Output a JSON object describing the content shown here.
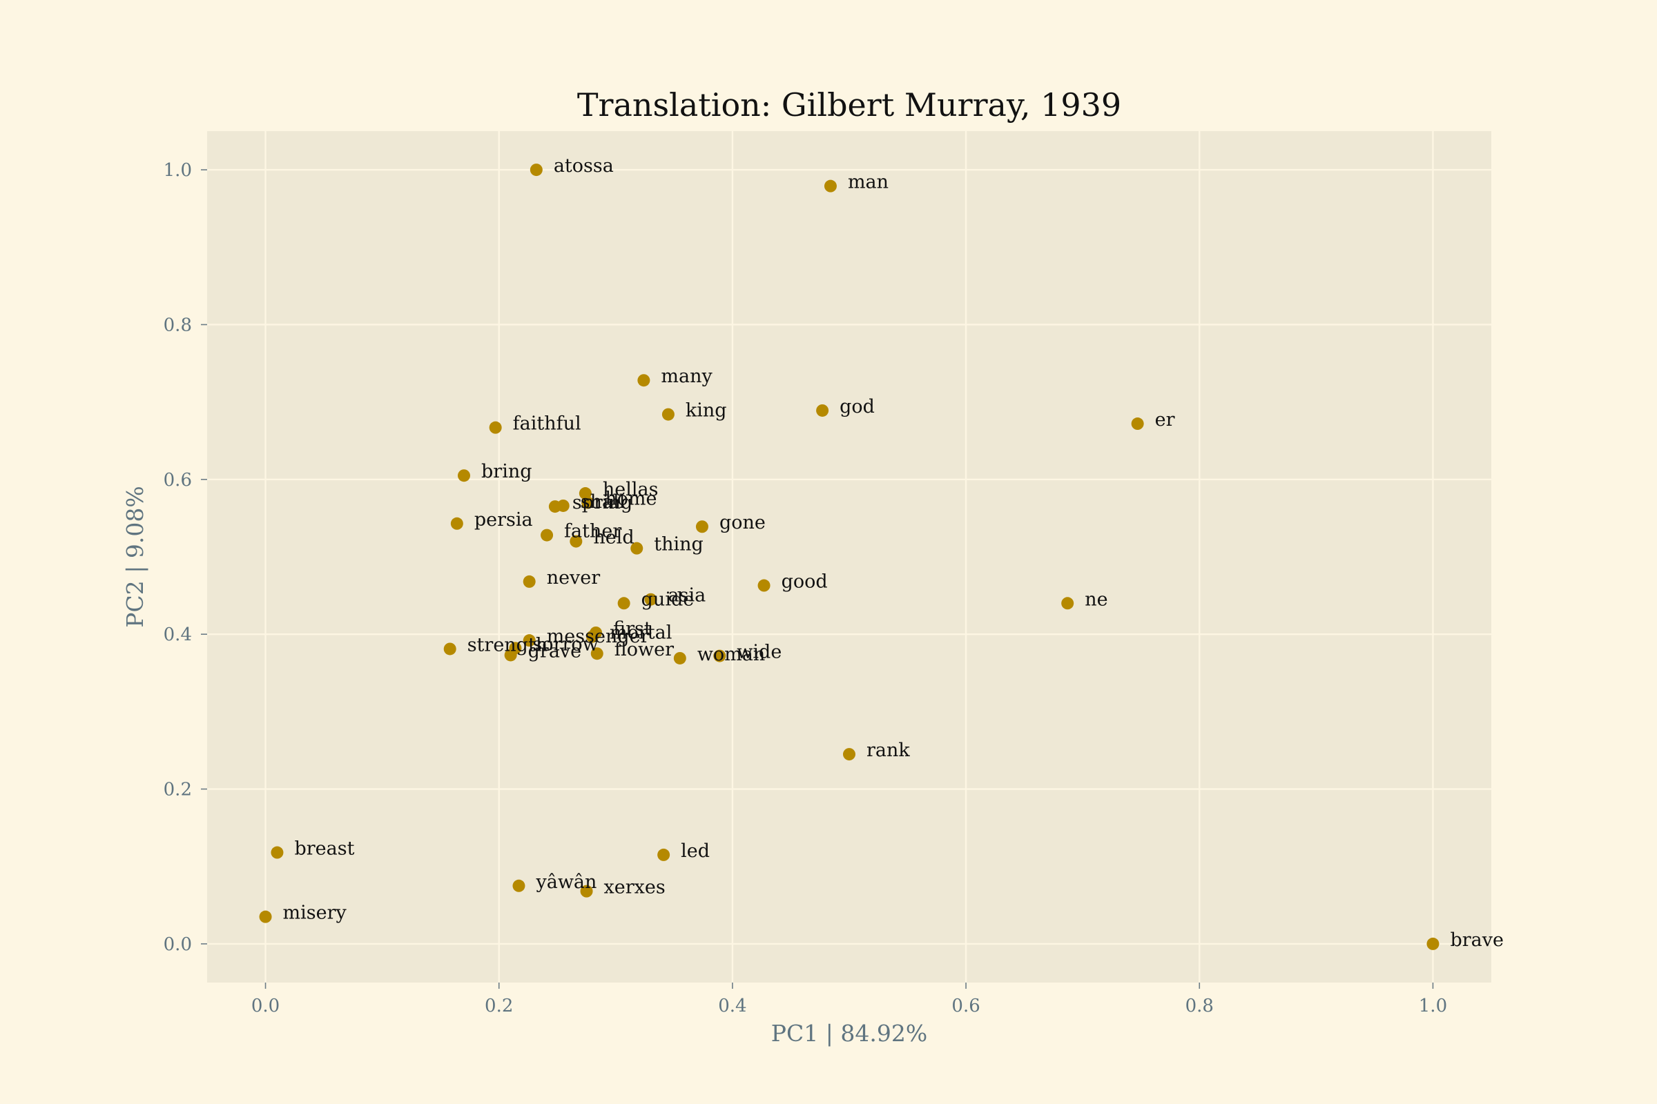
{
  "chart_data": {
    "type": "scatter",
    "title": "Translation: Gilbert Murray, 1939",
    "xlabel": "PC1 | 84.92%",
    "ylabel": "PC2 | 9.08%",
    "xlim": [
      -0.05,
      1.05
    ],
    "ylim": [
      -0.05,
      1.05
    ],
    "xticks": [
      0.0,
      0.2,
      0.4,
      0.6,
      0.8,
      1.0
    ],
    "yticks": [
      0.0,
      0.2,
      0.4,
      0.6,
      0.8,
      1.0
    ],
    "xtick_labels": [
      "0.0",
      "0.2",
      "0.4",
      "0.6",
      "0.8",
      "1.0"
    ],
    "ytick_labels": [
      "0.0",
      "0.2",
      "0.4",
      "0.6",
      "0.8",
      "1.0"
    ],
    "grid": true,
    "colors": {
      "figure_background": "#fdf6e3",
      "plot_background": "#eee8d5",
      "point": "#b58900",
      "grid": "#fdf6e3"
    },
    "points": [
      {
        "label": "atossa",
        "x": 0.232,
        "y": 1.0
      },
      {
        "label": "man",
        "x": 0.484,
        "y": 0.979
      },
      {
        "label": "many",
        "x": 0.324,
        "y": 0.728
      },
      {
        "label": "king",
        "x": 0.345,
        "y": 0.684
      },
      {
        "label": "god",
        "x": 0.477,
        "y": 0.689
      },
      {
        "label": "er",
        "x": 0.747,
        "y": 0.672
      },
      {
        "label": "faithful",
        "x": 0.197,
        "y": 0.667
      },
      {
        "label": "bring",
        "x": 0.17,
        "y": 0.605
      },
      {
        "label": "hellas",
        "x": 0.274,
        "y": 0.582
      },
      {
        "label": "spring",
        "x": 0.248,
        "y": 0.565
      },
      {
        "label": "shall",
        "x": 0.255,
        "y": 0.566
      },
      {
        "label": "home",
        "x": 0.276,
        "y": 0.57
      },
      {
        "label": "persia",
        "x": 0.164,
        "y": 0.543
      },
      {
        "label": "gone",
        "x": 0.374,
        "y": 0.539
      },
      {
        "label": "father",
        "x": 0.241,
        "y": 0.528
      },
      {
        "label": "held",
        "x": 0.266,
        "y": 0.52
      },
      {
        "label": "thing",
        "x": 0.318,
        "y": 0.511
      },
      {
        "label": "never",
        "x": 0.226,
        "y": 0.468
      },
      {
        "label": "good",
        "x": 0.427,
        "y": 0.463
      },
      {
        "label": "asia",
        "x": 0.33,
        "y": 0.445
      },
      {
        "label": "guide",
        "x": 0.307,
        "y": 0.44
      },
      {
        "label": "ne",
        "x": 0.687,
        "y": 0.44
      },
      {
        "label": "first",
        "x": 0.283,
        "y": 0.402
      },
      {
        "label": "mortal",
        "x": 0.28,
        "y": 0.397
      },
      {
        "label": "messenger",
        "x": 0.226,
        "y": 0.392
      },
      {
        "label": "strength",
        "x": 0.158,
        "y": 0.381
      },
      {
        "label": "sorrow",
        "x": 0.214,
        "y": 0.382
      },
      {
        "label": "grave",
        "x": 0.21,
        "y": 0.373
      },
      {
        "label": "flower",
        "x": 0.284,
        "y": 0.375
      },
      {
        "label": "woman",
        "x": 0.355,
        "y": 0.369
      },
      {
        "label": "wide",
        "x": 0.389,
        "y": 0.372
      },
      {
        "label": "rank",
        "x": 0.5,
        "y": 0.245
      },
      {
        "label": "breast",
        "x": 0.01,
        "y": 0.118
      },
      {
        "label": "led",
        "x": 0.341,
        "y": 0.115
      },
      {
        "label": "yâwân",
        "x": 0.217,
        "y": 0.075
      },
      {
        "label": "xerxes",
        "x": 0.275,
        "y": 0.068
      },
      {
        "label": "misery",
        "x": 0.0,
        "y": 0.035
      },
      {
        "label": "brave",
        "x": 1.0,
        "y": 0.0
      }
    ]
  }
}
